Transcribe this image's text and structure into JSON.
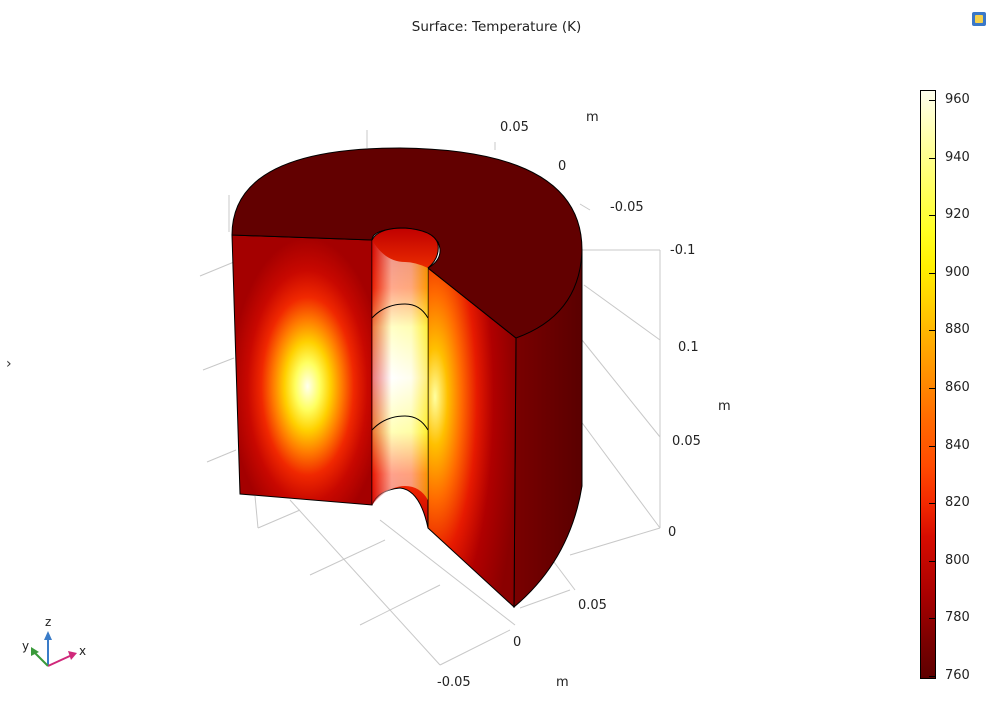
{
  "plot": {
    "title": "Surface: Temperature (K)"
  },
  "axes": {
    "x_ticks": [
      "-0.05",
      "0",
      "0.05"
    ],
    "x_unit": "m",
    "y_ticks": [
      "0.05",
      "0",
      "-0.05",
      "-0.1"
    ],
    "y_unit": "m",
    "z_ticks": [
      "0",
      "0.05",
      "0.1"
    ],
    "z_unit": "m"
  },
  "triad": {
    "x_label": "x",
    "y_label": "y",
    "z_label": "z"
  },
  "colorbar": {
    "ticks": [
      "960",
      "940",
      "920",
      "900",
      "880",
      "860",
      "840",
      "820",
      "800",
      "780",
      "760"
    ],
    "min": 760,
    "max": 960,
    "colormap": "heat"
  },
  "colors": {
    "cold": "#5e0000",
    "hot": "#ffffee",
    "grid": "#c8c8c8"
  },
  "icons": {
    "corner": "window-icon",
    "left_handle": "collapse-handle-icon"
  },
  "left_handle_glyph": "›"
}
